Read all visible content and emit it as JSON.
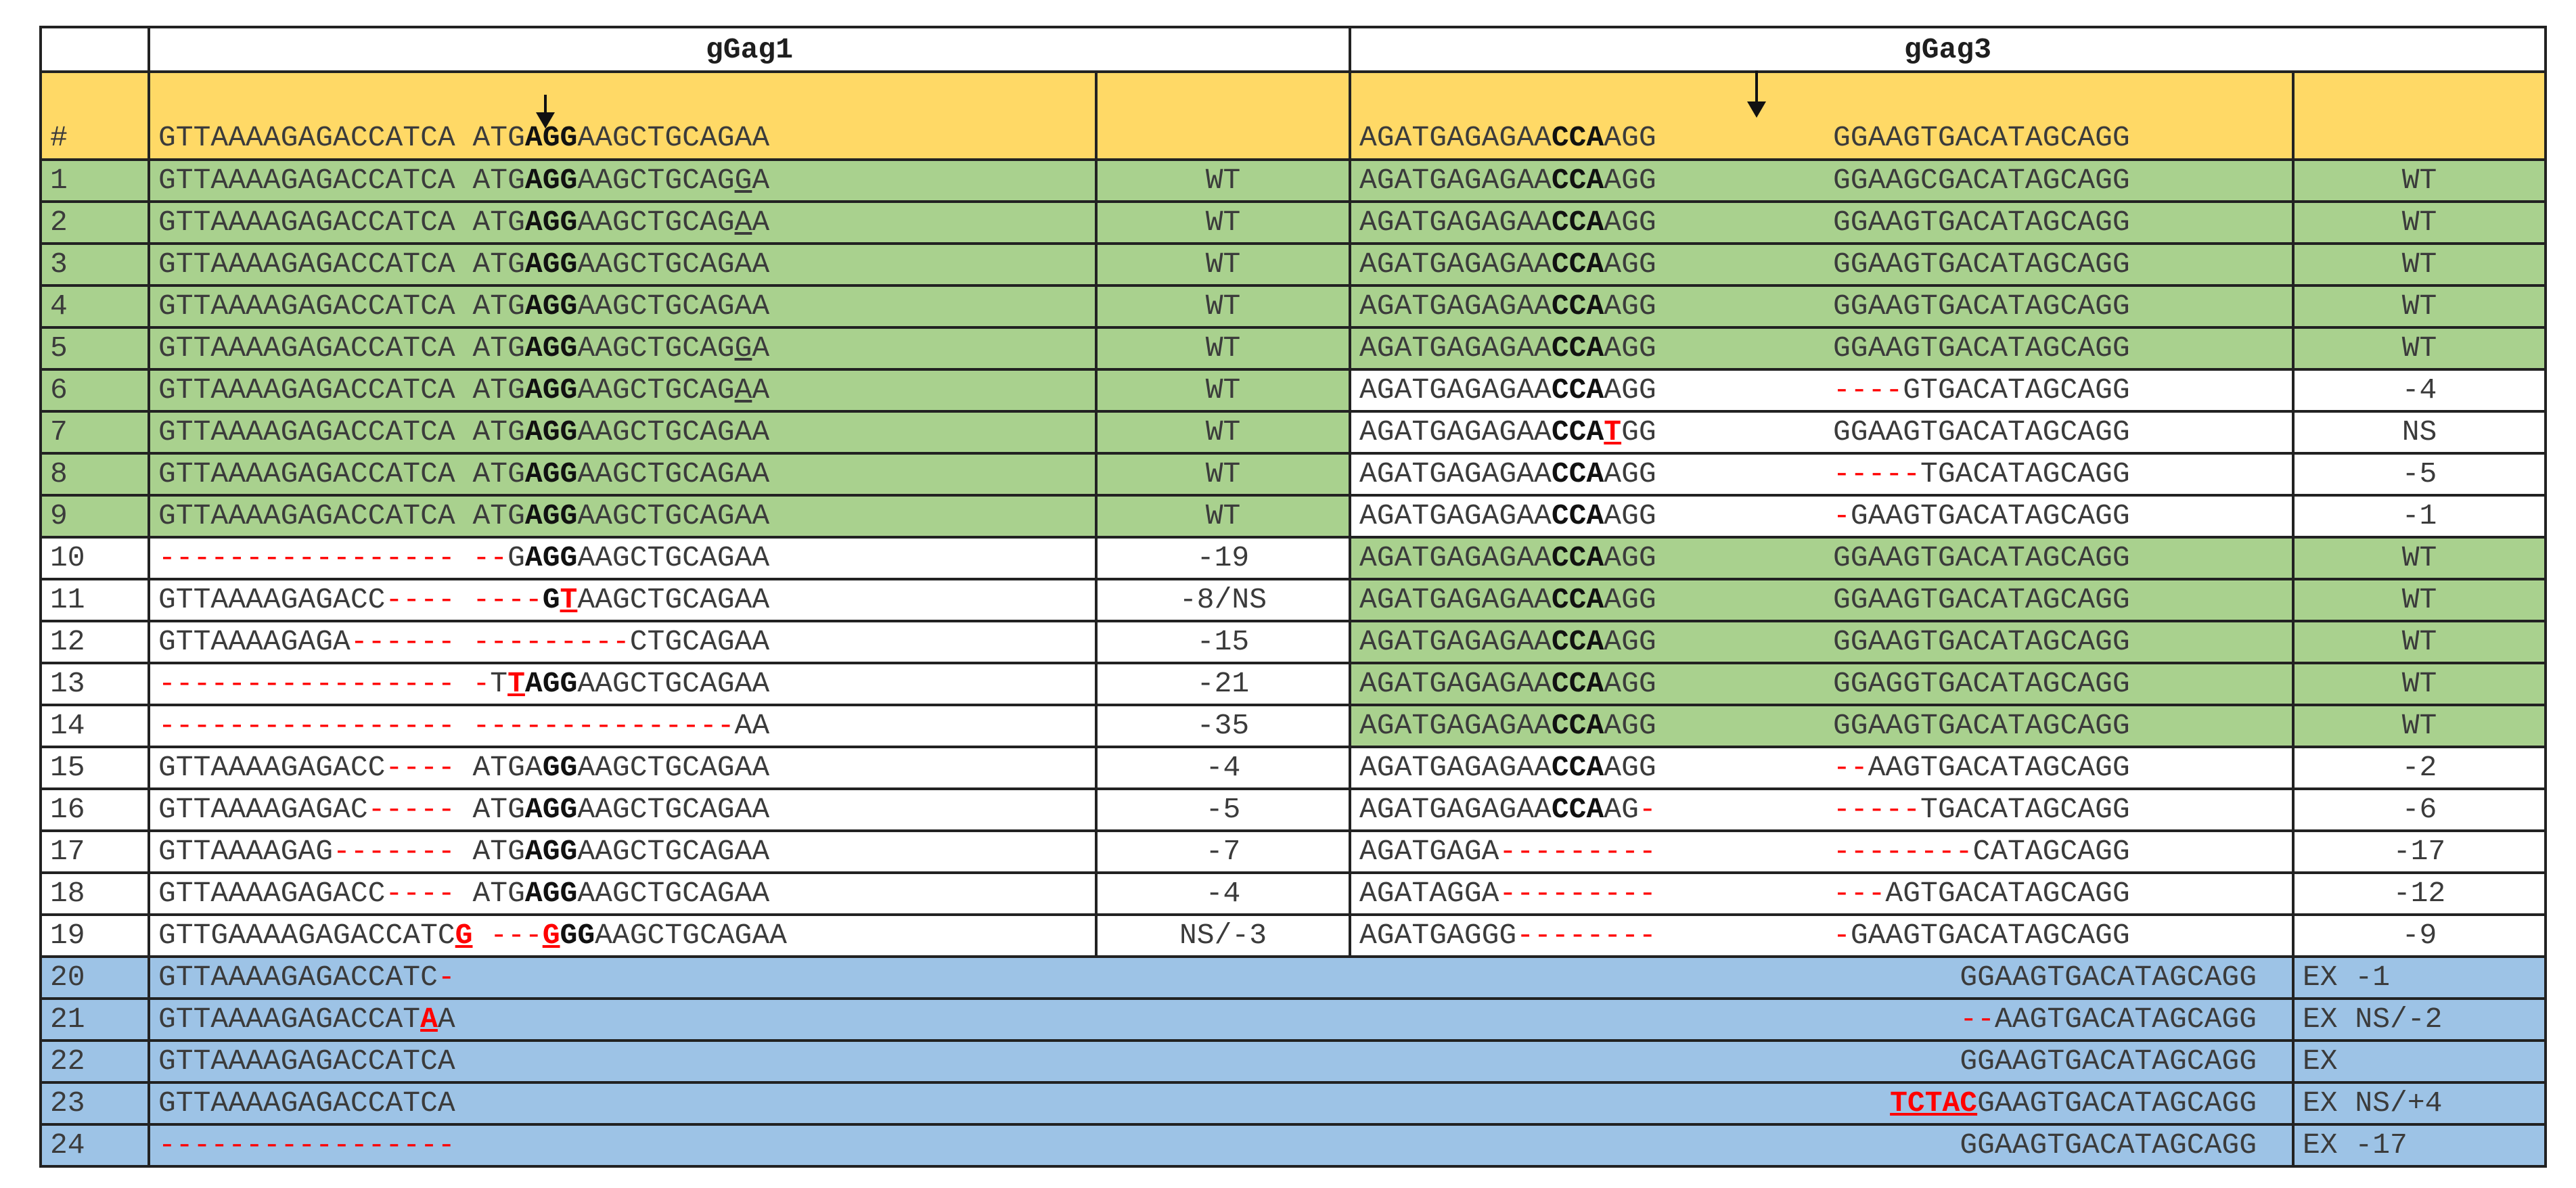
{
  "headers": {
    "hash": "#",
    "gGag1": "gGag1",
    "gGag3": "gGag3"
  },
  "reference": {
    "g1": [
      {
        "t": "GTTAAAAGAGACCATCA ATG"
      },
      {
        "t": "AGG",
        "s": "b"
      },
      {
        "t": "AAGCTGCAGAA"
      }
    ],
    "g3a": [
      {
        "t": "AGATGAGAGAA"
      },
      {
        "t": "CCA",
        "s": "b"
      },
      {
        "t": "AGG"
      }
    ],
    "g3b": "GGAAGTGACATAGCAGG"
  },
  "rows": [
    {
      "num": "1",
      "g1": [
        {
          "t": "GTTAAAAGAGACCATCA ATG"
        },
        {
          "t": "AGG",
          "s": "b"
        },
        {
          "t": "AAGCTGCAG"
        },
        {
          "t": "G",
          "s": "u"
        },
        {
          "t": "A"
        }
      ],
      "r1": "WT",
      "c1": "gn",
      "g3a": [
        {
          "t": "AGATGAGAGAA"
        },
        {
          "t": "CCA",
          "s": "b"
        },
        {
          "t": "AGG"
        }
      ],
      "g3b": [
        {
          "t": "GGAAGCGACATAGCAGG"
        }
      ],
      "r3": "WT",
      "c3": "gn"
    },
    {
      "num": "2",
      "g1": [
        {
          "t": "GTTAAAAGAGACCATCA ATG"
        },
        {
          "t": "AGG",
          "s": "b"
        },
        {
          "t": "AAGCTGCAG"
        },
        {
          "t": "A",
          "s": "u"
        },
        {
          "t": "A"
        }
      ],
      "r1": "WT",
      "c1": "gn",
      "g3a": [
        {
          "t": "AGATGAGAGAA"
        },
        {
          "t": "CCA",
          "s": "b"
        },
        {
          "t": "AGG"
        }
      ],
      "g3b": [
        {
          "t": "GGAAGTGACATAGCAGG"
        }
      ],
      "r3": "WT",
      "c3": "gn"
    },
    {
      "num": "3",
      "g1": [
        {
          "t": "GTTAAAAGAGACCATCA ATG"
        },
        {
          "t": "AGG",
          "s": "b"
        },
        {
          "t": "AAGCTGCAGAA"
        }
      ],
      "r1": "WT",
      "c1": "gn",
      "g3a": [
        {
          "t": "AGATGAGAGAA"
        },
        {
          "t": "CCA",
          "s": "b"
        },
        {
          "t": "AGG"
        }
      ],
      "g3b": [
        {
          "t": "GGAAGTGACATAGCAGG"
        }
      ],
      "r3": "WT",
      "c3": "gn"
    },
    {
      "num": "4",
      "g1": [
        {
          "t": "GTTAAAAGAGACCATCA ATG"
        },
        {
          "t": "AGG",
          "s": "b"
        },
        {
          "t": "AAGCTGCAGAA"
        }
      ],
      "r1": "WT",
      "c1": "gn",
      "g3a": [
        {
          "t": "AGATGAGAGAA"
        },
        {
          "t": "CCA",
          "s": "b"
        },
        {
          "t": "AGG"
        }
      ],
      "g3b": [
        {
          "t": "GGAAGTGACATAGCAGG"
        }
      ],
      "r3": "WT",
      "c3": "gn"
    },
    {
      "num": "5",
      "g1": [
        {
          "t": "GTTAAAAGAGACCATCA ATG"
        },
        {
          "t": "AGG",
          "s": "b"
        },
        {
          "t": "AAGCTGCAG"
        },
        {
          "t": "G",
          "s": "u"
        },
        {
          "t": "A"
        }
      ],
      "r1": "WT",
      "c1": "gn",
      "g3a": [
        {
          "t": "AGATGAGAGAA"
        },
        {
          "t": "CCA",
          "s": "b"
        },
        {
          "t": "AGG"
        }
      ],
      "g3b": [
        {
          "t": "GGAAGTGACATAGCAGG"
        }
      ],
      "r3": "WT",
      "c3": "gn"
    },
    {
      "num": "6",
      "g1": [
        {
          "t": "GTTAAAAGAGACCATCA ATG"
        },
        {
          "t": "AGG",
          "s": "b"
        },
        {
          "t": "AAGCTGCAG"
        },
        {
          "t": "A",
          "s": "u"
        },
        {
          "t": "A"
        }
      ],
      "r1": "WT",
      "c1": "gn",
      "g3a": [
        {
          "t": "AGATGAGAGAA"
        },
        {
          "t": "CCA",
          "s": "b"
        },
        {
          "t": "AGG"
        }
      ],
      "g3b": [
        {
          "t": "----",
          "s": "red"
        },
        {
          "t": "GTGACATAGCAGG"
        }
      ],
      "r3": "-4",
      "c3": "w"
    },
    {
      "num": "7",
      "g1": [
        {
          "t": "GTTAAAAGAGACCATCA ATG"
        },
        {
          "t": "AGG",
          "s": "b"
        },
        {
          "t": "AAGCTGCAGAA"
        }
      ],
      "r1": "WT",
      "c1": "gn",
      "g3a": [
        {
          "t": "AGATGAGAGAA"
        },
        {
          "t": "CCA",
          "s": "b"
        },
        {
          "t": "T",
          "s": "bru"
        },
        {
          "t": "GG"
        }
      ],
      "g3b": [
        {
          "t": "GGAAGTGACATAGCAGG"
        }
      ],
      "r3": "NS",
      "c3": "w"
    },
    {
      "num": "8",
      "g1": [
        {
          "t": "GTTAAAAGAGACCATCA ATG"
        },
        {
          "t": "AGG",
          "s": "b"
        },
        {
          "t": "AAGCTGCAGAA"
        }
      ],
      "r1": "WT",
      "c1": "gn",
      "g3a": [
        {
          "t": "AGATGAGAGAA"
        },
        {
          "t": "CCA",
          "s": "b"
        },
        {
          "t": "AGG"
        }
      ],
      "g3b": [
        {
          "t": "-----",
          "s": "red"
        },
        {
          "t": "TGACATAGCAGG"
        }
      ],
      "r3": "-5",
      "c3": "w"
    },
    {
      "num": "9",
      "g1": [
        {
          "t": "GTTAAAAGAGACCATCA ATG"
        },
        {
          "t": "AGG",
          "s": "b"
        },
        {
          "t": "AAGCTGCAGAA"
        }
      ],
      "r1": "WT",
      "c1": "gn",
      "g3a": [
        {
          "t": "AGATGAGAGAA"
        },
        {
          "t": "CCA",
          "s": "b"
        },
        {
          "t": "AGG"
        }
      ],
      "g3b": [
        {
          "t": "-",
          "s": "red"
        },
        {
          "t": "GAAGTGACATAGCAGG"
        }
      ],
      "r3": "-1",
      "c3": "w"
    },
    {
      "num": "10",
      "g1": [
        {
          "t": "----------------- --",
          "s": "red"
        },
        {
          "t": "G"
        },
        {
          "t": "AGG",
          "s": "b"
        },
        {
          "t": "AAGCTGCAGAA"
        }
      ],
      "r1": "-19",
      "c1": "w",
      "g3a": [
        {
          "t": "AGATGAGAGAA"
        },
        {
          "t": "CCA",
          "s": "b"
        },
        {
          "t": "AGG"
        }
      ],
      "g3b": [
        {
          "t": "GGAAGTGACATAGCAGG"
        }
      ],
      "r3": "WT",
      "c3": "gn"
    },
    {
      "num": "11",
      "g1": [
        {
          "t": "GTTAAAAGAGACC"
        },
        {
          "t": "---- ----",
          "s": "red"
        },
        {
          "t": "G",
          "s": "b"
        },
        {
          "t": "T",
          "s": "bru"
        },
        {
          "t": "AAGCTGCAGAA"
        }
      ],
      "r1": "-8/NS",
      "c1": "w",
      "g3a": [
        {
          "t": "AGATGAGAGAA"
        },
        {
          "t": "CCA",
          "s": "b"
        },
        {
          "t": "AGG"
        }
      ],
      "g3b": [
        {
          "t": "GGAAGTGACATAGCAGG"
        }
      ],
      "r3": "WT",
      "c3": "gn"
    },
    {
      "num": "12",
      "g1": [
        {
          "t": "GTTAAAAGAGA"
        },
        {
          "t": "------ ---------",
          "s": "red"
        },
        {
          "t": "CTGCAGAA"
        }
      ],
      "r1": "-15",
      "c1": "w",
      "g3a": [
        {
          "t": "AGATGAGAGAA"
        },
        {
          "t": "CCA",
          "s": "b"
        },
        {
          "t": "AGG"
        }
      ],
      "g3b": [
        {
          "t": "GGAAGTGACATAGCAGG"
        }
      ],
      "r3": "WT",
      "c3": "gn"
    },
    {
      "num": "13",
      "g1": [
        {
          "t": "----------------- -",
          "s": "red"
        },
        {
          "t": "T"
        },
        {
          "t": "T",
          "s": "bru"
        },
        {
          "t": "AGG",
          "s": "b"
        },
        {
          "t": "AAGCTGCAGAA"
        }
      ],
      "r1": "-21",
      "c1": "w",
      "g3a": [
        {
          "t": "AGATGAGAGAA"
        },
        {
          "t": "CCA",
          "s": "b"
        },
        {
          "t": "AGG"
        }
      ],
      "g3b": [
        {
          "t": "GGAGGTGACATAGCAGG"
        }
      ],
      "r3": "WT",
      "c3": "gn"
    },
    {
      "num": "14",
      "g1": [
        {
          "t": "----------------- ---------------",
          "s": "red"
        },
        {
          "t": "AA"
        }
      ],
      "r1": "-35",
      "c1": "w",
      "g3a": [
        {
          "t": "AGATGAGAGAA"
        },
        {
          "t": "CCA",
          "s": "b"
        },
        {
          "t": "AGG"
        }
      ],
      "g3b": [
        {
          "t": "GGAAGTGACATAGCAGG"
        }
      ],
      "r3": "WT",
      "c3": "gn"
    },
    {
      "num": "15",
      "g1": [
        {
          "t": "GTTAAAAGAGACC"
        },
        {
          "t": "----",
          "s": "red"
        },
        {
          "t": " ATGA"
        },
        {
          "t": "GG",
          "s": "b"
        },
        {
          "t": "AAGCTGCAGAA"
        }
      ],
      "r1": "-4",
      "c1": "w",
      "g3a": [
        {
          "t": "AGATGAGAGAA"
        },
        {
          "t": "CCA",
          "s": "b"
        },
        {
          "t": "AGG"
        }
      ],
      "g3b": [
        {
          "t": "--",
          "s": "red"
        },
        {
          "t": "AAGTGACATAGCAGG"
        }
      ],
      "r3": "-2",
      "c3": "w"
    },
    {
      "num": "16",
      "g1": [
        {
          "t": "GTTAAAAGAGAC"
        },
        {
          "t": "-----",
          "s": "red"
        },
        {
          "t": " ATG"
        },
        {
          "t": "AGG",
          "s": "b"
        },
        {
          "t": "AAGCTGCAGAA"
        }
      ],
      "r1": "-5",
      "c1": "w",
      "g3a": [
        {
          "t": "AGATGAGAGAA"
        },
        {
          "t": "CCA",
          "s": "b"
        },
        {
          "t": "AG"
        },
        {
          "t": "-",
          "s": "red"
        }
      ],
      "g3b": [
        {
          "t": "-----",
          "s": "red"
        },
        {
          "t": "TGACATAGCAGG"
        }
      ],
      "r3": "-6",
      "c3": "w"
    },
    {
      "num": "17",
      "g1": [
        {
          "t": "GTTAAAAGAG"
        },
        {
          "t": "-------",
          "s": "red"
        },
        {
          "t": " ATG"
        },
        {
          "t": "AGG",
          "s": "b"
        },
        {
          "t": "AAGCTGCAGAA"
        }
      ],
      "r1": "-7",
      "c1": "w",
      "g3a": [
        {
          "t": "AGATGAGA"
        },
        {
          "t": "---------",
          "s": "red"
        }
      ],
      "g3b": [
        {
          "t": "--------",
          "s": "red"
        },
        {
          "t": "CATAGCAGG"
        }
      ],
      "r3": "-17",
      "c3": "w"
    },
    {
      "num": "18",
      "g1": [
        {
          "t": "GTTAAAAGAGACC"
        },
        {
          "t": "----",
          "s": "red"
        },
        {
          "t": " ATG"
        },
        {
          "t": "AGG",
          "s": "b"
        },
        {
          "t": "AAGCTGCAGAA"
        }
      ],
      "r1": "-4",
      "c1": "w",
      "g3a": [
        {
          "t": "AGATAGGA"
        },
        {
          "t": "---------",
          "s": "red"
        }
      ],
      "g3b": [
        {
          "t": "---",
          "s": "red"
        },
        {
          "t": "AGTGACATAGCAGG"
        }
      ],
      "r3": "-12",
      "c3": "w"
    },
    {
      "num": "19",
      "g1": [
        {
          "t": "GTTGAAAAGAGACCATC"
        },
        {
          "t": "G",
          "s": "bru"
        },
        {
          "t": " ---",
          "s": "red"
        },
        {
          "t": "G",
          "s": "bru"
        },
        {
          "t": "GG",
          "s": "b"
        },
        {
          "t": "AAGCTGCAGAA"
        }
      ],
      "r1": "NS/-3",
      "c1": "w",
      "g3a": [
        {
          "t": "AGATGAGGG"
        },
        {
          "t": "--------",
          "s": "red"
        }
      ],
      "g3b": [
        {
          "t": "-",
          "s": "red"
        },
        {
          "t": "GAAGTGACATAGCAGG"
        }
      ],
      "r3": "-9",
      "c3": "w"
    }
  ],
  "exRows": [
    {
      "num": "20",
      "left": [
        {
          "t": "GTTAAAAGAGACCATC"
        },
        {
          "t": "-",
          "s": "red"
        }
      ],
      "right": [
        {
          "t": "GGAAGTGACATAGCAGG"
        }
      ],
      "res": "EX -1"
    },
    {
      "num": "21",
      "left": [
        {
          "t": "GTTAAAAGAGACCAT"
        },
        {
          "t": "A",
          "s": "bru"
        },
        {
          "t": "A"
        }
      ],
      "right": [
        {
          "t": "--",
          "s": "red"
        },
        {
          "t": "AAGTGACATAGCAGG"
        }
      ],
      "res": "EX NS/-2"
    },
    {
      "num": "22",
      "left": [
        {
          "t": "GTTAAAAGAGACCATCA"
        }
      ],
      "right": [
        {
          "t": "GGAAGTGACATAGCAGG"
        }
      ],
      "res": "EX"
    },
    {
      "num": "23",
      "left": [
        {
          "t": "GTTAAAAGAGACCATCA"
        }
      ],
      "right": [
        {
          "t": "TCTAC",
          "s": "bru"
        },
        {
          "t": "GAAGTGACATAGCAGG"
        }
      ],
      "res": "EX NS/+4"
    },
    {
      "num": "24",
      "left": [
        {
          "t": "-----------------",
          "s": "red"
        }
      ],
      "right": [
        {
          "t": "GGAAGTGACATAGCAGG"
        }
      ],
      "res": "EX -17"
    }
  ]
}
